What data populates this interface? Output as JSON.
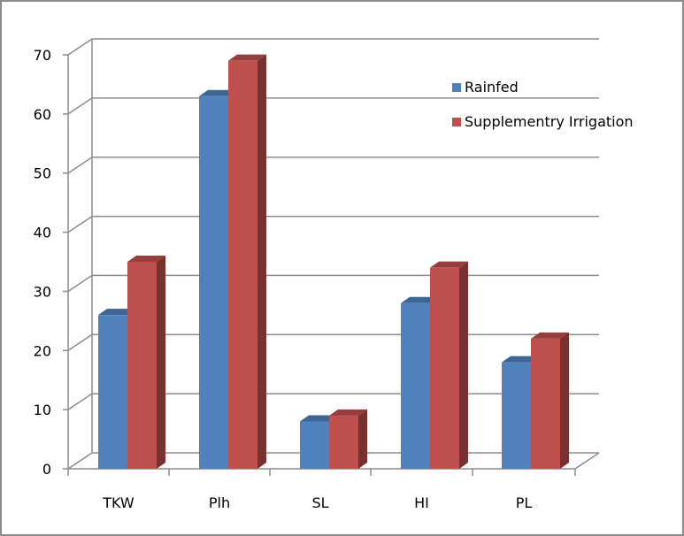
{
  "chart_data": {
    "type": "bar",
    "title": "",
    "xlabel": "",
    "ylabel": "",
    "categories": [
      "TKW",
      "Plh",
      "SL",
      "HI",
      "PL"
    ],
    "series": [
      {
        "name": "Rainfed",
        "values": [
          26,
          63,
          8,
          28,
          18
        ]
      },
      {
        "name": "Supplementry Irrigation",
        "values": [
          35,
          69,
          9,
          34,
          22
        ]
      }
    ],
    "ylim": [
      0,
      70
    ],
    "yticks": [
      0,
      10,
      20,
      30,
      40,
      50,
      60,
      70
    ],
    "grid": true,
    "legend_position": "top-right",
    "style": "3d-clustered-column",
    "colors": {
      "Rainfed": "#4f81bd",
      "Supplementry Irrigation": "#c0504d"
    }
  }
}
